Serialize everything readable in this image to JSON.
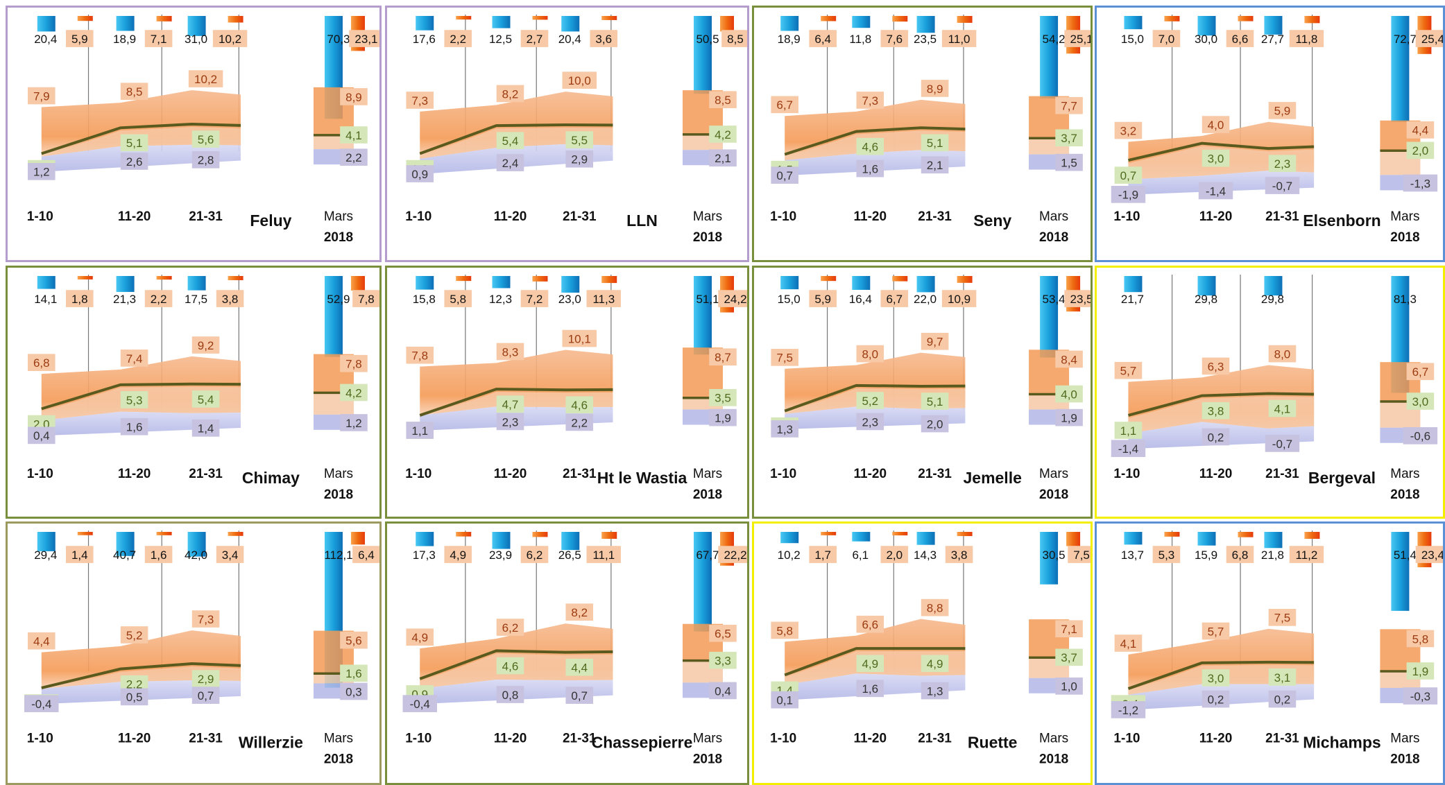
{
  "figure": {
    "period_labels": [
      "1-10",
      "11-20",
      "21-31"
    ],
    "month_label_line1": "Mars",
    "month_label_line2": "2018"
  },
  "colors": {
    "max_band": "#f59a55",
    "mean_band": "#f6c8a6",
    "min_band": "#b3b7e6",
    "mean_line": "#5a5a1e",
    "rain_bar": "#1aa0dc",
    "sun_bar": "#ee6a10",
    "max_label_bg": "#f7c9a6",
    "mean_label_bg": "#d5e7b8",
    "min_label_bg": "#c6c2e0",
    "border_purple": "#b49ccd",
    "border_olive": "#7a8f3c",
    "border_blue": "#5b8fd6",
    "border_yellow": "#f2f000",
    "border_khaki": "#9c9a5e"
  },
  "chart_data": [
    {
      "type": "area",
      "station": "Feluy",
      "rain": [
        "20,4",
        "18,9",
        "31,0"
      ],
      "sun": [
        "5,9",
        "7,1",
        "10,2"
      ],
      "tmax": [
        "7,9",
        "8,5",
        "10,2"
      ],
      "tmean": [
        "1,6",
        "5,1",
        "5,6"
      ],
      "tmin": [
        "1,2",
        "2,6",
        "2,8"
      ],
      "month": {
        "rain": "70,3",
        "sun": "23,1",
        "tmax": "8,9",
        "tmean": "4,1",
        "tmin": "2,2"
      }
    },
    {
      "type": "area",
      "station": "LLN",
      "rain": [
        "17,6",
        "12,5",
        "20,4"
      ],
      "sun": [
        "2,2",
        "2,7",
        "3,6"
      ],
      "tmax": [
        "7,3",
        "8,2",
        "10,0"
      ],
      "tmean": [
        "1,6",
        "5,4",
        "5,5"
      ],
      "tmin": [
        "0,9",
        "2,4",
        "2,9"
      ],
      "month": {
        "rain": "50,5",
        "sun": "8,5",
        "tmax": "8,5",
        "tmean": "4,2",
        "tmin": "2,1"
      }
    },
    {
      "type": "area",
      "station": "Seny",
      "rain": [
        "18,9",
        "11,8",
        "23,5"
      ],
      "sun": [
        "6,4",
        "7,6",
        "11,0"
      ],
      "tmax": [
        "6,7",
        "7,3",
        "8,9"
      ],
      "tmean": [
        "1,5",
        "4,6",
        "5,1"
      ],
      "tmin": [
        "0,7",
        "1,6",
        "2,1"
      ],
      "month": {
        "rain": "54,2",
        "sun": "25,1",
        "tmax": "7,7",
        "tmean": "3,7",
        "tmin": "1,5"
      }
    },
    {
      "type": "area",
      "station": "Elsenborn",
      "rain": [
        "15,0",
        "30,0",
        "27,7"
      ],
      "sun": [
        "7,0",
        "6,6",
        "11,8"
      ],
      "tmax": [
        "3,2",
        "4,0",
        "5,9"
      ],
      "tmean": [
        "0,7",
        "3,0",
        "2,3"
      ],
      "tmin": [
        "-1,9",
        "-1,4",
        "-0,7"
      ],
      "month": {
        "rain": "72,7",
        "sun": "25,4",
        "tmax": "4,4",
        "tmean": "2,0",
        "tmin": "-1,3"
      }
    },
    {
      "type": "area",
      "station": "Chimay",
      "rain": [
        "14,1",
        "21,3",
        "17,5"
      ],
      "sun": [
        "1,8",
        "2,2",
        "3,8"
      ],
      "tmax": [
        "6,8",
        "7,4",
        "9,2"
      ],
      "tmean": [
        "2,0",
        "5,3",
        "5,4"
      ],
      "tmin": [
        "0,4",
        "1,6",
        "1,4"
      ],
      "month": {
        "rain": "52,9",
        "sun": "7,8",
        "tmax": "7,8",
        "tmean": "4,2",
        "tmin": "1,2"
      }
    },
    {
      "type": "area",
      "station": "Ht le Wastia",
      "rain": [
        "15,8",
        "12,3",
        "23,0"
      ],
      "sun": [
        "5,8",
        "7,2",
        "11,3"
      ],
      "tmax": [
        "7,8",
        "8,3",
        "10,1"
      ],
      "tmean": [
        "1,1",
        "4,7",
        "4,6"
      ],
      "tmin": [
        "1,1",
        "2,3",
        "2,2"
      ],
      "month": {
        "rain": "51,1",
        "sun": "24,2",
        "tmax": "8,7",
        "tmean": "3,5",
        "tmin": "1,9"
      }
    },
    {
      "type": "area",
      "station": "Jemelle",
      "rain": [
        "15,0",
        "16,4",
        "22,0"
      ],
      "sun": [
        "5,9",
        "6,7",
        "10,9"
      ],
      "tmax": [
        "7,5",
        "8,0",
        "9,7"
      ],
      "tmean": [
        "1,7",
        "5,2",
        "5,1"
      ],
      "tmin": [
        "1,3",
        "2,3",
        "2,0"
      ],
      "month": {
        "rain": "53,4",
        "sun": "23,5",
        "tmax": "8,4",
        "tmean": "4,0",
        "tmin": "1,9"
      }
    },
    {
      "type": "area",
      "station": "Bergeval",
      "rain": [
        "21,7",
        "29,8",
        "29,8"
      ],
      "sun": [
        null,
        null,
        null
      ],
      "tmax": [
        "5,7",
        "6,3",
        "8,0"
      ],
      "tmean": [
        "1,1",
        "3,8",
        "4,1"
      ],
      "tmin": [
        "-1,4",
        "0,2",
        "-0,7"
      ],
      "month": {
        "rain": "81,3",
        "sun": null,
        "tmax": "6,7",
        "tmean": "3,0",
        "tmin": "-0,6"
      }
    },
    {
      "type": "area",
      "station": "Willerzie",
      "rain": [
        "29,4",
        "40,7",
        "42,0"
      ],
      "sun": [
        "1,4",
        "1,6",
        "3,4"
      ],
      "tmax": [
        "4,4",
        "5,2",
        "7,3"
      ],
      "tmean": [
        "-0,3",
        "2,2",
        "2,9"
      ],
      "tmin": [
        "-0,4",
        "0,5",
        "0,7"
      ],
      "month": {
        "rain": "112,1",
        "sun": "6,4",
        "tmax": "5,6",
        "tmean": "1,6",
        "tmin": "0,3"
      }
    },
    {
      "type": "area",
      "station": "Chassepierre",
      "rain": [
        "17,3",
        "23,9",
        "26,5"
      ],
      "sun": [
        "4,9",
        "6,2",
        "11,1"
      ],
      "tmax": [
        "4,9",
        "6,2",
        "8,2"
      ],
      "tmean": [
        "0,9",
        "4,6",
        "4,4"
      ],
      "tmin": [
        "-0,4",
        "0,8",
        "0,7"
      ],
      "month": {
        "rain": "67,7",
        "sun": "22,2",
        "tmax": "6,5",
        "tmean": "3,3",
        "tmin": "0,4"
      }
    },
    {
      "type": "area",
      "station": "Ruette",
      "rain": [
        "10,2",
        "6,1",
        "14,3"
      ],
      "sun": [
        "1,7",
        "2,0",
        "3,8"
      ],
      "tmax": [
        "5,8",
        "6,6",
        "8,8"
      ],
      "tmean": [
        "1,4",
        "4,9",
        "4,9"
      ],
      "tmin": [
        "0,1",
        "1,6",
        "1,3"
      ],
      "month": {
        "rain": "30,5",
        "sun": "7,5",
        "tmax": "7,1",
        "tmean": "3,7",
        "tmin": "1,0"
      }
    },
    {
      "type": "area",
      "station": "Michamps",
      "rain": [
        "13,7",
        "15,9",
        "21,8"
      ],
      "sun": [
        "5,3",
        "6,8",
        "11,2"
      ],
      "tmax": [
        "4,1",
        "5,7",
        "7,5"
      ],
      "tmean": [
        "-0,4",
        "3,0",
        "3,1"
      ],
      "tmin": [
        "-1,2",
        "0,2",
        "0,2"
      ],
      "month": {
        "rain": "51,4",
        "sun": "23,4",
        "tmax": "5,8",
        "tmean": "1,9",
        "tmin": "-0,3"
      }
    }
  ]
}
